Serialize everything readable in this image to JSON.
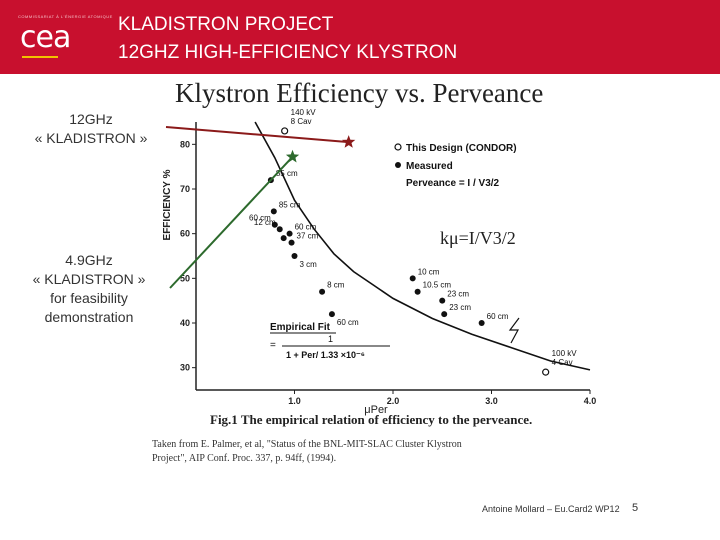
{
  "header": {
    "logo_small": "COMMISSARIAT À L'ÉNERGIE ATOMIQUE",
    "logo": "cea",
    "title_line1": "KLADISTRON PROJECT",
    "title_line2": "12GHZ HIGH-EFFICIENCY KLYSTRON"
  },
  "notes": {
    "twelve_ghz": [
      "12GHz",
      "« KLADISTRON »"
    ],
    "four_ghz": [
      "4.9GHz",
      "« KLADISTRON »",
      "for feasibility",
      "demonstration"
    ]
  },
  "chart_data": {
    "type": "scatter",
    "title": "Klystron Efficiency vs. Perveance",
    "xlabel": "μPer",
    "ylabel": "EFFICIENCY %",
    "xlim": [
      0,
      4.0
    ],
    "ylim": [
      25,
      85
    ],
    "x_ticks": [
      "1.0",
      "2.0",
      "3.0",
      "4.0"
    ],
    "y_ticks": [
      "30",
      "40",
      "50",
      "60",
      "70",
      "80"
    ],
    "legend": {
      "this_design": "This Design (CONDOR)",
      "measured": "Measured",
      "perveance": "Perveance = I / V3/2"
    },
    "formula": "kμ=I/V3/2",
    "fit_label": "Empirical Fit",
    "fit_equation": {
      "numerator": "1",
      "prefix": "=",
      "denominator": "1 + Per/ 1.33 ×10⁻⁶"
    },
    "fit_curve": {
      "x": [
        0.6,
        0.8,
        1.0,
        1.2,
        1.4,
        1.6,
        1.8,
        2.0,
        2.4,
        2.8,
        3.2,
        3.6,
        4.0
      ],
      "y": [
        88.0,
        77.0,
        67.5,
        61.0,
        55.5,
        51.5,
        48.5,
        45.5,
        41.0,
        37.5,
        34.5,
        31.5,
        29.5
      ]
    },
    "design_points": [
      {
        "x": 0.9,
        "y": 83,
        "label": "140 kV 8 Cav"
      },
      {
        "x": 3.55,
        "y": 29,
        "label": "100 kV 4 Cav"
      }
    ],
    "measured_points": [
      {
        "x": 0.76,
        "y": 72,
        "label": "85 cm"
      },
      {
        "x": 0.79,
        "y": 65,
        "label": "85 cm"
      },
      {
        "x": 0.8,
        "y": 62,
        "label": "60 cm"
      },
      {
        "x": 0.85,
        "y": 61,
        "label": "12 cm"
      },
      {
        "x": 0.89,
        "y": 59,
        "label": ""
      },
      {
        "x": 0.95,
        "y": 60,
        "label": "60 cm"
      },
      {
        "x": 0.97,
        "y": 58,
        "label": "37 cm"
      },
      {
        "x": 1.0,
        "y": 55,
        "label": "3 cm"
      },
      {
        "x": 1.28,
        "y": 47,
        "label": "8 cm"
      },
      {
        "x": 1.38,
        "y": 42,
        "label": "60 cm"
      },
      {
        "x": 2.2,
        "y": 50,
        "label": "10 cm"
      },
      {
        "x": 2.25,
        "y": 47,
        "label": "10.5 cm"
      },
      {
        "x": 2.5,
        "y": 45,
        "label": "23 cm"
      },
      {
        "x": 2.52,
        "y": 42,
        "label": "23 cm"
      },
      {
        "x": 2.9,
        "y": 40,
        "label": "60 cm"
      }
    ],
    "fig_caption": "Fig.1  The empirical relation of efficiency to the perveance.",
    "source_line1": "Taken from E. Palmer, et al, \"Status of the BNL-MIT-SLAC Cluster Klystron",
    "source_line2": "Project\", AIP Conf. Proc. 337, p. 94ff, (1994).",
    "markers": [
      {
        "name": "12GHz",
        "x": 1.55,
        "y": 80.5,
        "color": "#8b1a1a"
      },
      {
        "name": "4.9GHz",
        "x": 0.98,
        "y": 77.2,
        "color": "#2d6a2d"
      }
    ]
  },
  "footer": {
    "author": "Antoine Mollard – Eu.Card2 WP12",
    "page": "5"
  },
  "colors": {
    "header_red": "#c8102e",
    "logo_yellow": "#f2c200",
    "marker_red": "#8b1a1a",
    "marker_green": "#2d6a2d"
  }
}
